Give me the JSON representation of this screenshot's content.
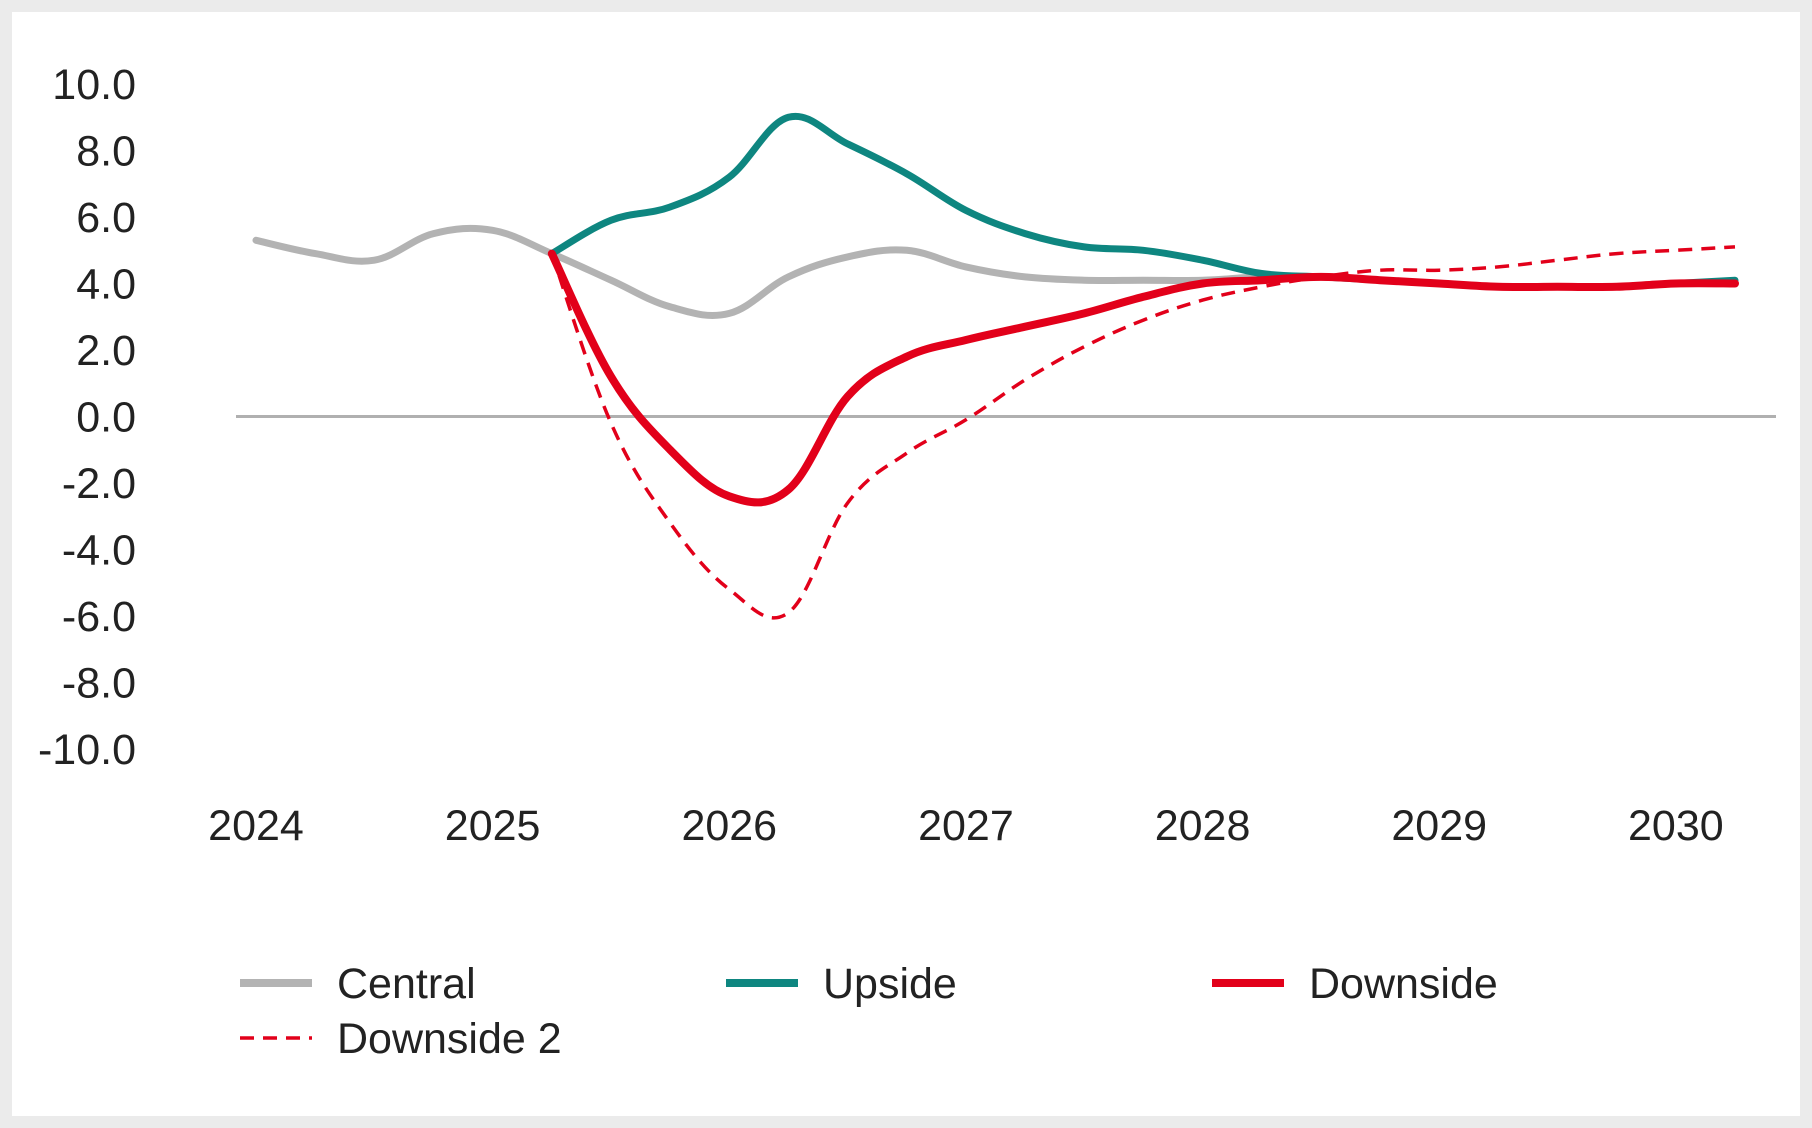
{
  "chart_data": {
    "type": "line",
    "title": "",
    "xlabel": "",
    "ylabel": "",
    "ylim": [
      -10,
      10
    ],
    "yticks": [
      10,
      8,
      6,
      4,
      2,
      0,
      -2,
      -4,
      -6,
      -8,
      -10
    ],
    "ytick_labels": [
      "10.0",
      "8.0",
      "6.0",
      "4.0",
      "2.0",
      "0.0",
      "-2.0",
      "-4.0",
      "-6.0",
      "-8.0",
      "-10.0"
    ],
    "xlim": [
      2024,
      2030.25
    ],
    "xticks": [
      2024,
      2025,
      2026,
      2027,
      2028,
      2029,
      2030
    ],
    "xtick_labels": [
      "2024",
      "2025",
      "2026",
      "2027",
      "2028",
      "2029",
      "2030"
    ],
    "grid": false,
    "zero_line": true,
    "legend_position": "bottom",
    "series": [
      {
        "name": "Central",
        "color": "#b3b3b3",
        "dash": "solid",
        "x": [
          2024.0,
          2024.25,
          2024.5,
          2024.75,
          2025.0,
          2025.25,
          2025.5,
          2025.75,
          2026.0,
          2026.25,
          2026.5,
          2026.75,
          2027.0,
          2027.25,
          2027.5,
          2027.75,
          2028.0,
          2028.25,
          2028.5,
          2028.75,
          2029.0,
          2029.25,
          2029.5,
          2029.75,
          2030.0,
          2030.25
        ],
        "y": [
          5.3,
          4.9,
          4.7,
          5.5,
          5.6,
          4.9,
          4.1,
          3.3,
          3.1,
          4.2,
          4.8,
          5.0,
          4.5,
          4.2,
          4.1,
          4.1,
          4.1,
          4.2,
          4.2,
          4.1,
          4.0,
          3.9,
          3.9,
          3.9,
          4.0,
          4.0
        ]
      },
      {
        "name": "Upside",
        "color": "#0e8680",
        "dash": "solid",
        "x": [
          2025.25,
          2025.5,
          2025.75,
          2026.0,
          2026.25,
          2026.5,
          2026.75,
          2027.0,
          2027.25,
          2027.5,
          2027.75,
          2028.0,
          2028.25,
          2028.5,
          2028.75,
          2029.0,
          2029.25,
          2029.5,
          2029.75,
          2030.0,
          2030.25
        ],
        "y": [
          4.9,
          5.9,
          6.3,
          7.2,
          9.0,
          8.2,
          7.3,
          6.2,
          5.5,
          5.1,
          5.0,
          4.7,
          4.3,
          4.2,
          4.1,
          4.0,
          3.9,
          3.9,
          3.9,
          4.0,
          4.1
        ]
      },
      {
        "name": "Downside",
        "color": "#e2001a",
        "dash": "solid",
        "x": [
          2025.25,
          2025.5,
          2025.75,
          2026.0,
          2026.25,
          2026.5,
          2026.75,
          2027.0,
          2027.25,
          2027.5,
          2027.75,
          2028.0,
          2028.25,
          2028.5,
          2028.75,
          2029.0,
          2029.25,
          2029.5,
          2029.75,
          2030.0,
          2030.25
        ],
        "y": [
          4.9,
          1.2,
          -1.0,
          -2.4,
          -2.2,
          0.6,
          1.8,
          2.3,
          2.7,
          3.1,
          3.6,
          4.0,
          4.1,
          4.2,
          4.1,
          4.0,
          3.9,
          3.9,
          3.9,
          4.0,
          4.0
        ]
      },
      {
        "name": "Downside 2",
        "color": "#e2001a",
        "dash": "dashed",
        "x": [
          2025.25,
          2025.5,
          2025.75,
          2026.0,
          2026.25,
          2026.5,
          2026.75,
          2027.0,
          2027.25,
          2027.5,
          2027.75,
          2028.0,
          2028.25,
          2028.5,
          2028.75,
          2029.0,
          2029.25,
          2029.5,
          2029.75,
          2030.0,
          2030.25
        ],
        "y": [
          4.9,
          -0.2,
          -3.2,
          -5.2,
          -5.9,
          -2.6,
          -1.1,
          -0.1,
          1.1,
          2.1,
          2.9,
          3.5,
          3.9,
          4.2,
          4.4,
          4.4,
          4.5,
          4.7,
          4.9,
          5.0,
          5.1
        ]
      }
    ]
  }
}
